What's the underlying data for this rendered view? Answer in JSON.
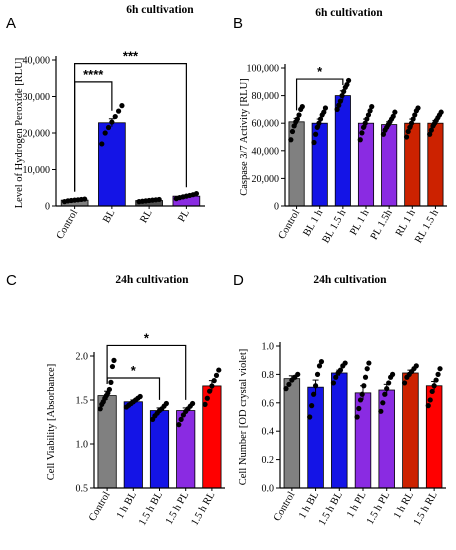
{
  "chart_data": [
    {
      "panel": "A",
      "type": "bar",
      "title": "6h cultivation",
      "ylabel": "Level of Hydrogen Peroxide [RLU]",
      "xlabel": "",
      "ylim": [
        0,
        40000
      ],
      "yticks": [
        0,
        10000,
        20000,
        30000,
        40000
      ],
      "yticklabels": [
        "0",
        "10,000",
        "20,000",
        "30,000",
        "40,000"
      ],
      "categories": [
        "Control",
        "BL",
        "RL",
        "PL"
      ],
      "values": [
        1600,
        22800,
        1500,
        2700
      ],
      "errors": [
        150,
        1100,
        120,
        250
      ],
      "colors": [
        "#808080",
        "#1414e6",
        "#505050",
        "#8a2be2"
      ],
      "points": [
        [
          1200,
          1400,
          1500,
          1600,
          1700,
          1800,
          1900
        ],
        [
          17000,
          20000,
          21500,
          23000,
          24500,
          26000,
          27500
        ],
        [
          1200,
          1300,
          1400,
          1500,
          1600,
          1700,
          1800
        ],
        [
          2000,
          2300,
          2500,
          2700,
          2900,
          3100,
          3400
        ]
      ],
      "significance": [
        {
          "from": 0,
          "to": 1,
          "label": "****",
          "y": 34000
        },
        {
          "from": 0,
          "to": 3,
          "label": "***",
          "y": 39000
        }
      ],
      "grid": false
    },
    {
      "panel": "B",
      "type": "bar",
      "title": "6h cultivation",
      "ylabel": "Caspase 3/7 Activity [RLU]",
      "xlabel": "",
      "ylim": [
        0,
        100000
      ],
      "yticks": [
        0,
        20000,
        40000,
        60000,
        80000,
        100000
      ],
      "yticklabels": [
        "0",
        "20,000",
        "40,000",
        "60,000",
        "80,000",
        "100,000"
      ],
      "categories": [
        "Control",
        "BL 1 h",
        "BL 1.5 h",
        "PL 1 h",
        "PL 1.5h",
        "RL 1 h",
        "RL 1.5 h"
      ],
      "values": [
        61000,
        60000,
        80000,
        60000,
        59000,
        60000,
        60000
      ],
      "errors": [
        2500,
        3000,
        3500,
        3000,
        2000,
        3000,
        2000
      ],
      "colors": [
        "#808080",
        "#1414e6",
        "#1414e6",
        "#8a2be2",
        "#8a2be2",
        "#cc2200",
        "#cc2200"
      ],
      "points": [
        [
          48000,
          54000,
          58000,
          61000,
          63000,
          66000,
          70000,
          72000
        ],
        [
          46000,
          52000,
          57000,
          60000,
          63000,
          66000,
          68000,
          71000
        ],
        [
          70000,
          73000,
          76000,
          80000,
          83000,
          86000,
          88000,
          91000
        ],
        [
          48000,
          53000,
          57000,
          60000,
          63000,
          66000,
          69000,
          72000
        ],
        [
          52000,
          55000,
          57000,
          59000,
          61000,
          63000,
          65000,
          68000
        ],
        [
          50000,
          54000,
          57000,
          60000,
          63000,
          66000,
          69000,
          71000
        ],
        [
          52000,
          55000,
          58000,
          60000,
          62000,
          64000,
          66000,
          68000
        ]
      ],
      "significance": [
        {
          "from": 0,
          "to": 2,
          "label": "*",
          "y": 92000
        }
      ],
      "grid": false
    },
    {
      "panel": "C",
      "type": "bar",
      "title": "24h cultivation",
      "ylabel": "Cell Viability [Absorbance]",
      "xlabel": "",
      "ylim": [
        0.5,
        2.0
      ],
      "yticks": [
        0.5,
        1.0,
        1.5,
        2.0
      ],
      "yticklabels": [
        "0.5",
        "1.0",
        "1.5",
        "2.0"
      ],
      "categories": [
        "Control",
        "1 h BL",
        "1.5 h BL",
        "1.5 h PL",
        "1.5 h RL"
      ],
      "values": [
        1.55,
        1.48,
        1.38,
        1.38,
        1.66
      ],
      "errors": [
        0.05,
        0.02,
        0.03,
        0.03,
        0.06
      ],
      "colors": [
        "#808080",
        "#1414e6",
        "#1414e6",
        "#8a2be2",
        "#ff0000"
      ],
      "points": [
        [
          1.4,
          1.45,
          1.48,
          1.52,
          1.55,
          1.58,
          1.62,
          1.7,
          1.88,
          1.95
        ],
        [
          1.42,
          1.44,
          1.46,
          1.48,
          1.5,
          1.52,
          1.54
        ],
        [
          1.28,
          1.32,
          1.35,
          1.38,
          1.4,
          1.43,
          1.46
        ],
        [
          1.22,
          1.28,
          1.33,
          1.37,
          1.4,
          1.43,
          1.46
        ],
        [
          1.45,
          1.52,
          1.6,
          1.66,
          1.72,
          1.78,
          1.84
        ]
      ],
      "significance": [
        {
          "from": 0,
          "to": 2,
          "label": "*",
          "y": 1.75
        },
        {
          "from": 0,
          "to": 3,
          "label": "*",
          "y": 2.12
        }
      ],
      "grid": false
    },
    {
      "panel": "D",
      "type": "bar",
      "title": "24h cultivation",
      "ylabel": "Cell Number [OD crystal violet]",
      "xlabel": "",
      "ylim": [
        0.0,
        1.0
      ],
      "yticks": [
        0.0,
        0.2,
        0.4,
        0.6,
        0.8,
        1.0
      ],
      "yticklabels": [
        "0.0",
        "0.2",
        "0.4",
        "0.6",
        "0.8",
        "1.0"
      ],
      "categories": [
        "Control",
        "1 h BL",
        "1.5 h BL",
        "1 h PL",
        "1.5 h PL",
        "1 h RL",
        "1.5 h RL"
      ],
      "values": [
        0.77,
        0.71,
        0.81,
        0.67,
        0.69,
        0.81,
        0.72
      ],
      "errors": [
        0.02,
        0.05,
        0.02,
        0.05,
        0.04,
        0.02,
        0.03
      ],
      "colors": [
        "#808080",
        "#1414e6",
        "#1414e6",
        "#8a2be2",
        "#8a2be2",
        "#cc2200",
        "#ff0000"
      ],
      "points": [
        [
          0.7,
          0.73,
          0.76,
          0.78,
          0.8
        ],
        [
          0.5,
          0.58,
          0.66,
          0.72,
          0.8,
          0.86,
          0.89
        ],
        [
          0.74,
          0.78,
          0.81,
          0.83,
          0.86,
          0.88
        ],
        [
          0.5,
          0.56,
          0.62,
          0.66,
          0.72,
          0.78,
          0.84,
          0.88
        ],
        [
          0.54,
          0.6,
          0.66,
          0.7,
          0.74,
          0.78,
          0.8
        ],
        [
          0.74,
          0.78,
          0.8,
          0.82,
          0.84,
          0.86
        ],
        [
          0.58,
          0.62,
          0.68,
          0.72,
          0.76,
          0.8,
          0.84
        ]
      ],
      "significance": [],
      "grid": false
    }
  ]
}
